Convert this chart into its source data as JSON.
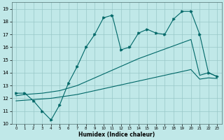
{
  "xlabel": "Humidex (Indice chaleur)",
  "xlim": [
    -0.5,
    23.5
  ],
  "ylim": [
    10,
    19.5
  ],
  "yticks": [
    10,
    11,
    12,
    13,
    14,
    15,
    16,
    17,
    18,
    19
  ],
  "xticks": [
    0,
    1,
    2,
    3,
    4,
    5,
    6,
    7,
    8,
    9,
    10,
    11,
    12,
    13,
    14,
    15,
    16,
    17,
    18,
    19,
    20,
    21,
    22,
    23
  ],
  "bg_color": "#c0e8e8",
  "grid_color": "#98c8c8",
  "line_color": "#006868",
  "line1_x": [
    0,
    1,
    2,
    3,
    4,
    5,
    6,
    7,
    8,
    9,
    10,
    11,
    12,
    13,
    14,
    15,
    16,
    17,
    18,
    19,
    20,
    21,
    22,
    23
  ],
  "line1_y": [
    12.4,
    12.4,
    11.8,
    11.0,
    10.3,
    11.5,
    13.2,
    14.5,
    16.0,
    17.0,
    18.3,
    18.5,
    15.8,
    16.0,
    17.1,
    17.4,
    17.1,
    17.0,
    18.2,
    18.8,
    18.8,
    17.0,
    14.0,
    13.7
  ],
  "line2_x": [
    0,
    1,
    2,
    3,
    4,
    5,
    6,
    7,
    8,
    9,
    10,
    11,
    12,
    13,
    14,
    15,
    16,
    17,
    18,
    19,
    20,
    21,
    22,
    23
  ],
  "line2_y": [
    12.2,
    12.3,
    12.35,
    12.4,
    12.5,
    12.6,
    12.8,
    13.0,
    13.3,
    13.6,
    13.9,
    14.2,
    14.5,
    14.8,
    15.1,
    15.35,
    15.6,
    15.85,
    16.1,
    16.35,
    16.6,
    13.8,
    14.0,
    13.7
  ],
  "line3_x": [
    0,
    1,
    2,
    3,
    4,
    5,
    6,
    7,
    8,
    9,
    10,
    11,
    12,
    13,
    14,
    15,
    16,
    17,
    18,
    19,
    20,
    21,
    22,
    23
  ],
  "line3_y": [
    11.8,
    11.85,
    11.9,
    11.95,
    12.0,
    12.1,
    12.2,
    12.3,
    12.45,
    12.6,
    12.75,
    12.9,
    13.05,
    13.2,
    13.35,
    13.5,
    13.65,
    13.8,
    13.95,
    14.1,
    14.25,
    13.5,
    13.6,
    13.55
  ]
}
